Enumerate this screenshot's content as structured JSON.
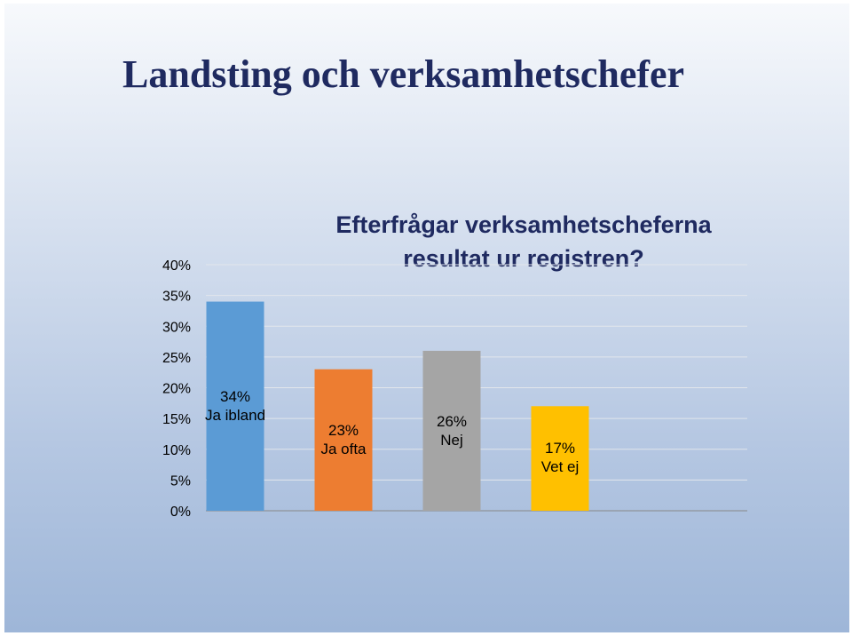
{
  "slide": {
    "title": "Landsting och verksamhetschefer"
  },
  "chart_data": {
    "type": "bar",
    "title_lines": [
      "Efterfrågar verksamhetscheferna",
      "resultat ur registren?"
    ],
    "categories": [
      "Ja ibland",
      "Ja ofta",
      "Nej",
      "Vet ej"
    ],
    "values": [
      34,
      23,
      26,
      17
    ],
    "value_labels": [
      "34%",
      "23%",
      "26%",
      "17%"
    ],
    "colors": [
      "#5b9bd5",
      "#ed7d31",
      "#a5a5a5",
      "#ffc000"
    ],
    "yticks": [
      "0%",
      "5%",
      "10%",
      "15%",
      "20%",
      "25%",
      "30%",
      "35%",
      "40%"
    ],
    "ylim": [
      0,
      40
    ],
    "grid": true,
    "legend": "none"
  }
}
